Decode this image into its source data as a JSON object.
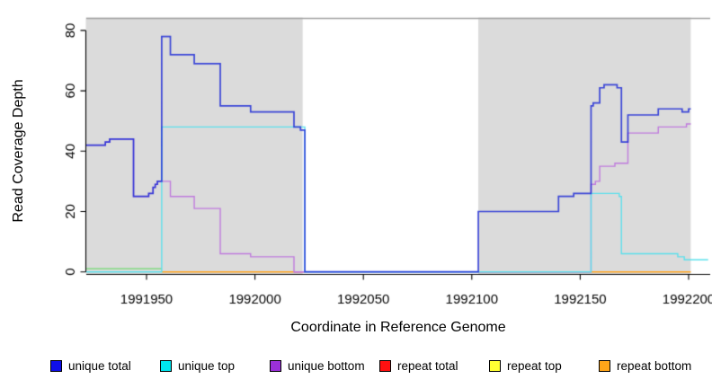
{
  "axes": {
    "x": {
      "label": "Coordinate in Reference Genome",
      "ticks": [
        1991950,
        1992000,
        1992050,
        1992100,
        1992150,
        1992200
      ],
      "tick_labels": [
        "1991950",
        "1992000",
        "1992050",
        "1992100",
        "1992150",
        "1992200"
      ],
      "range": [
        1991922,
        1992210
      ]
    },
    "y": {
      "label": "Read Coverage Depth",
      "ticks": [
        0,
        20,
        40,
        60,
        80
      ],
      "tick_labels": [
        "0",
        "20",
        "40",
        "60",
        "80"
      ],
      "range": [
        -1,
        84.5
      ]
    }
  },
  "chart_data": {
    "type": "line",
    "step": true,
    "title": "",
    "xlabel": "Coordinate in Reference Genome",
    "ylabel": "Read Coverage Depth",
    "xlim": [
      1991922,
      1992210
    ],
    "ylim": [
      0,
      84
    ],
    "grid": false,
    "shaded_regions": [
      {
        "x0": 1991922,
        "x1": 1992022,
        "color": "#DBDBDB"
      },
      {
        "x0": 1992103,
        "x1": 1992201,
        "color": "#DBDBDB"
      }
    ],
    "region_top_line_color": "#A2A2A2",
    "baseline_segments": [
      {
        "x0": 1991922,
        "x1": 1991957,
        "y": 1,
        "color": "#82D982",
        "name": "cyan-yellow-overlap"
      },
      {
        "x0": 1991957,
        "x1": 1992018,
        "y": 0,
        "color": "#FFA41F",
        "name": "repeat-bottom"
      },
      {
        "x0": 1992018,
        "x1": 1992023,
        "y": 0,
        "color": "#D94A63",
        "name": "repeat-total"
      },
      {
        "x0": 1992103,
        "x1": 1992155,
        "y": 0,
        "color": "#D94A63",
        "name": "repeat-total"
      },
      {
        "x0": 1992155,
        "x1": 1992201,
        "y": 0,
        "color": "#FFA41F",
        "name": "repeat-bottom"
      }
    ],
    "series": [
      {
        "name": "unique bottom",
        "color": "#C07BDD",
        "width": 1.4,
        "alpha": 1,
        "points": [
          [
            1991922,
            42
          ],
          [
            1991931,
            43
          ],
          [
            1991933,
            44
          ],
          [
            1991944,
            25
          ],
          [
            1991951,
            26
          ],
          [
            1991953,
            28
          ],
          [
            1991954,
            29
          ],
          [
            1991955,
            30
          ],
          [
            1991961,
            25
          ],
          [
            1991972,
            21
          ],
          [
            1991984,
            6
          ],
          [
            1991998,
            5
          ],
          [
            1992018,
            0
          ],
          [
            1992103,
            0
          ],
          [
            1992155,
            29
          ],
          [
            1992157,
            30
          ],
          [
            1992159,
            35
          ],
          [
            1992166,
            36
          ],
          [
            1992172,
            46
          ],
          [
            1992186,
            48
          ],
          [
            1992199,
            49
          ],
          [
            1992201,
            49
          ]
        ]
      },
      {
        "name": "unique top",
        "color": "#5CE0EC",
        "width": 1.4,
        "alpha": 1,
        "points": [
          [
            1991922,
            0
          ],
          [
            1991957,
            48
          ],
          [
            1992023,
            0
          ],
          [
            1992155,
            26
          ],
          [
            1992168,
            25
          ],
          [
            1992169,
            6
          ],
          [
            1992195,
            5
          ],
          [
            1992198,
            4
          ],
          [
            1992209,
            4
          ]
        ]
      },
      {
        "name": "unique total",
        "color": "#1F2BD6",
        "width": 1.7,
        "alpha": 0.85,
        "points": [
          [
            1991922,
            42
          ],
          [
            1991931,
            43
          ],
          [
            1991933,
            44
          ],
          [
            1991944,
            25
          ],
          [
            1991951,
            26
          ],
          [
            1991953,
            28
          ],
          [
            1991954,
            29
          ],
          [
            1991955,
            30
          ],
          [
            1991957,
            78
          ],
          [
            1991961,
            72
          ],
          [
            1991972,
            69
          ],
          [
            1991984,
            55
          ],
          [
            1991998,
            53
          ],
          [
            1992018,
            48
          ],
          [
            1992021,
            47
          ],
          [
            1992023,
            0
          ],
          [
            1992103,
            20
          ],
          [
            1992140,
            25
          ],
          [
            1992147,
            26
          ],
          [
            1992155,
            55
          ],
          [
            1992156,
            56
          ],
          [
            1992159,
            61
          ],
          [
            1992161,
            62
          ],
          [
            1992167,
            61
          ],
          [
            1992169,
            43
          ],
          [
            1992172,
            52
          ],
          [
            1992186,
            54
          ],
          [
            1992197,
            53
          ],
          [
            1992200,
            54
          ],
          [
            1992201,
            54
          ]
        ]
      }
    ]
  },
  "legend": {
    "items": [
      {
        "label": "unique total",
        "color": "#0F0FE8"
      },
      {
        "label": "unique top",
        "color": "#00E5EE"
      },
      {
        "label": "unique bottom",
        "color": "#9B30D9"
      },
      {
        "label": "repeat total",
        "color": "#FF1010"
      },
      {
        "label": "repeat top",
        "color": "#FFFF33"
      },
      {
        "label": "repeat bottom",
        "color": "#FFA519"
      }
    ]
  }
}
